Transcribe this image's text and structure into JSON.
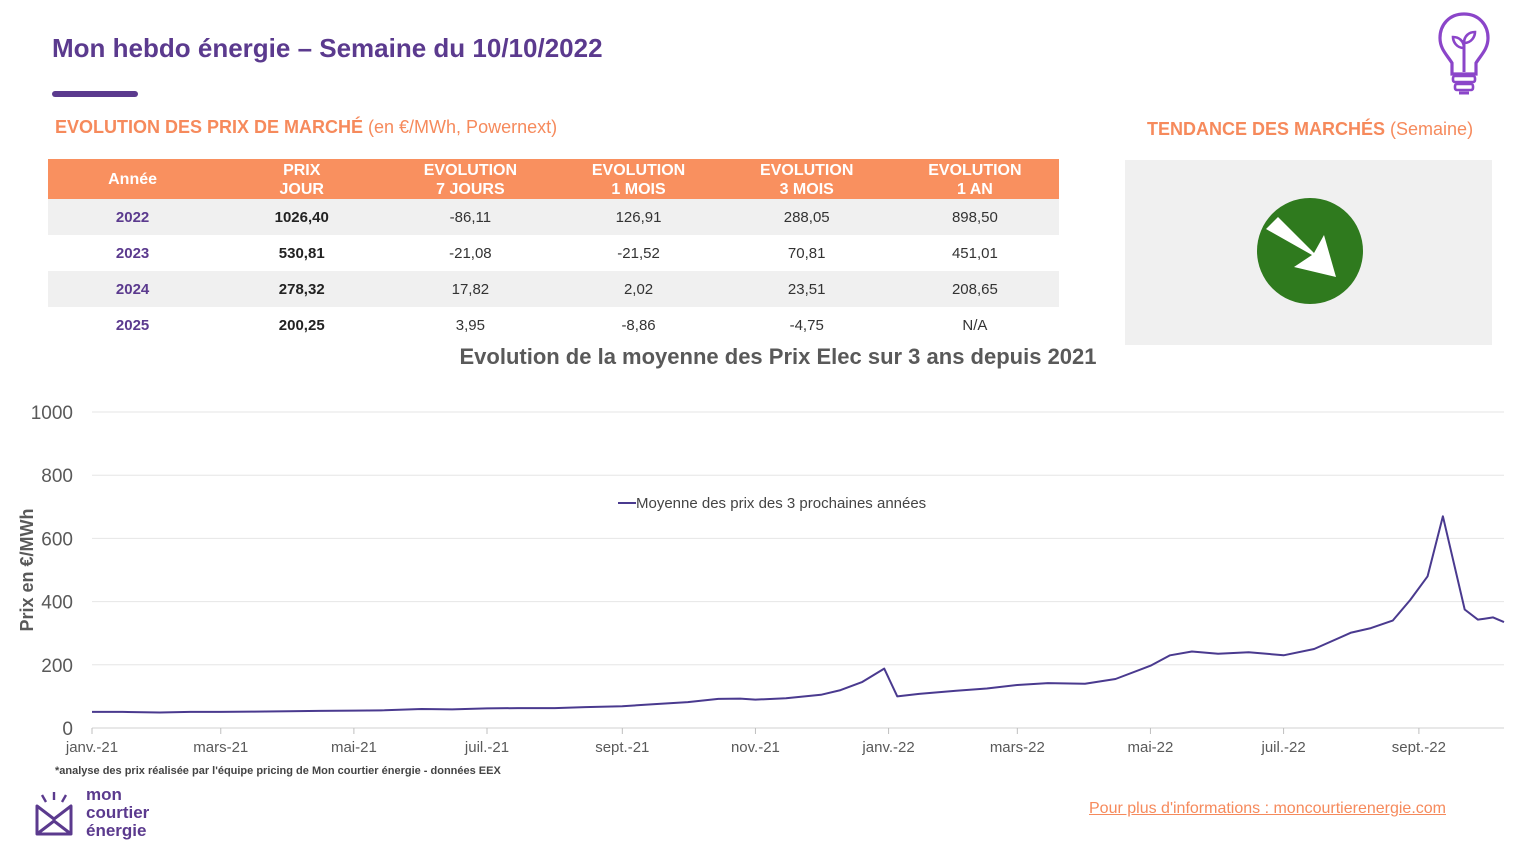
{
  "header": {
    "title": "Mon hebdo énergie – Semaine du 10/10/2022"
  },
  "left_section": {
    "title_bold": "EVOLUTION DES PRIX DE MARCHÉ",
    "title_rest": " (en €/MWh, Powernext)"
  },
  "right_section": {
    "title_bold": "TENDANCE DES MARCHÉS",
    "title_rest": " (Semaine)",
    "trend": "baisse",
    "trend_color": "#2f7a1e"
  },
  "table": {
    "headers": [
      [
        "Année",
        ""
      ],
      [
        "PRIX",
        "JOUR"
      ],
      [
        "EVOLUTION",
        "7 JOURS"
      ],
      [
        "EVOLUTION",
        "1 MOIS"
      ],
      [
        "EVOLUTION",
        "3 MOIS"
      ],
      [
        "EVOLUTION",
        "1 AN"
      ]
    ],
    "rows": [
      [
        "2022",
        "1026,40",
        "-86,11",
        "126,91",
        "288,05",
        "898,50"
      ],
      [
        "2023",
        "530,81",
        "-21,08",
        "-21,52",
        "70,81",
        "451,01"
      ],
      [
        "2024",
        "278,32",
        "17,82",
        "2,02",
        "23,51",
        "208,65"
      ],
      [
        "2025",
        "200,25",
        "3,95",
        "-8,86",
        "-4,75",
        "N/A"
      ]
    ]
  },
  "chart_title": "Evolution de la moyenne des Prix Elec sur 3 ans depuis 2021",
  "chart_data": {
    "type": "line",
    "title": "Evolution de la moyenne des Prix Elec sur 3 ans depuis 2021",
    "ylabel": "Prix en €/MWh",
    "xlabel": "",
    "ylim": [
      0,
      1000
    ],
    "yticks": [
      0,
      200,
      400,
      600,
      800,
      1000
    ],
    "x_ticks": [
      "janv.-21",
      "mars-21",
      "mai-21",
      "juil.-21",
      "sept.-21",
      "nov.-21",
      "janv.-22",
      "mars-22",
      "mai-22",
      "juil.-22",
      "sept.-22"
    ],
    "x_range": [
      "2021-01-01",
      "2022-10-10"
    ],
    "grid": true,
    "legend_position": "top-center",
    "series": [
      {
        "name": "Moyenne des prix des 3 prochaines années",
        "color": "#4a3a8f",
        "points": [
          [
            "2021-01-01",
            51
          ],
          [
            "2021-01-15",
            51
          ],
          [
            "2021-02-01",
            49
          ],
          [
            "2021-02-15",
            51
          ],
          [
            "2021-03-01",
            51
          ],
          [
            "2021-03-15",
            52
          ],
          [
            "2021-04-01",
            53
          ],
          [
            "2021-04-15",
            54
          ],
          [
            "2021-05-01",
            55
          ],
          [
            "2021-05-15",
            56
          ],
          [
            "2021-06-01",
            60
          ],
          [
            "2021-06-15",
            59
          ],
          [
            "2021-07-01",
            62
          ],
          [
            "2021-07-15",
            63
          ],
          [
            "2021-08-01",
            63
          ],
          [
            "2021-08-15",
            66
          ],
          [
            "2021-09-01",
            69
          ],
          [
            "2021-09-15",
            75
          ],
          [
            "2021-10-01",
            82
          ],
          [
            "2021-10-15",
            92
          ],
          [
            "2021-10-25",
            93
          ],
          [
            "2021-11-01",
            90
          ],
          [
            "2021-11-15",
            94
          ],
          [
            "2021-12-01",
            105
          ],
          [
            "2021-12-10",
            120
          ],
          [
            "2021-12-20",
            146
          ],
          [
            "2021-12-30",
            188
          ],
          [
            "2022-01-05",
            100
          ],
          [
            "2022-01-15",
            108
          ],
          [
            "2022-02-01",
            118
          ],
          [
            "2022-02-15",
            125
          ],
          [
            "2022-03-01",
            136
          ],
          [
            "2022-03-15",
            142
          ],
          [
            "2022-04-01",
            140
          ],
          [
            "2022-04-15",
            155
          ],
          [
            "2022-05-01",
            197
          ],
          [
            "2022-05-10",
            230
          ],
          [
            "2022-05-20",
            242
          ],
          [
            "2022-06-01",
            235
          ],
          [
            "2022-06-15",
            240
          ],
          [
            "2022-07-01",
            230
          ],
          [
            "2022-07-15",
            250
          ],
          [
            "2022-08-01",
            302
          ],
          [
            "2022-08-10",
            316
          ],
          [
            "2022-08-20",
            340
          ],
          [
            "2022-08-28",
            405
          ],
          [
            "2022-09-05",
            480
          ],
          [
            "2022-09-12",
            670
          ],
          [
            "2022-09-22",
            375
          ],
          [
            "2022-09-28",
            343
          ],
          [
            "2022-10-01",
            346
          ],
          [
            "2022-10-05",
            350
          ],
          [
            "2022-10-10",
            335
          ]
        ]
      }
    ]
  },
  "footer": {
    "footnote": "*analyse des prix réalisée par l'équipe pricing de Mon courtier énergie -  données EEX",
    "logo_line1": "mon",
    "logo_line2": "courtier",
    "logo_line3": "énergie",
    "link": "Pour plus d'informations : moncourtierenergie.com"
  },
  "icons": {
    "bulb": "lightbulb-icon",
    "trend": "arrow-down-right-icon",
    "logo": "envelope-logo-icon"
  }
}
